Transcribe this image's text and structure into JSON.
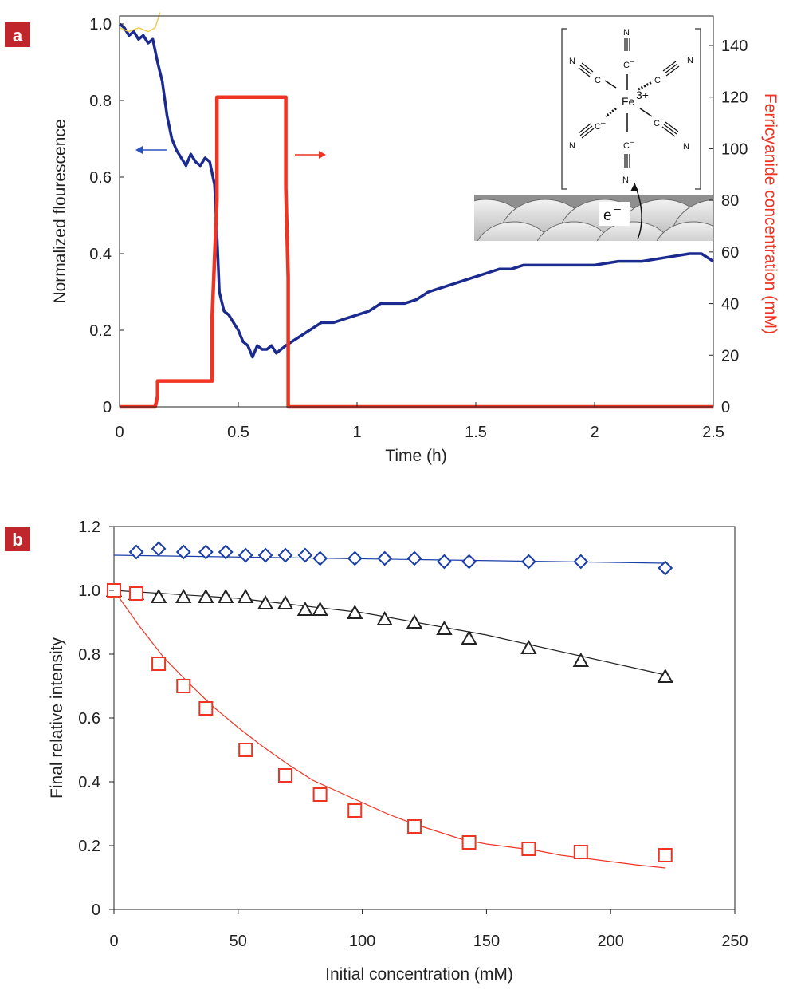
{
  "chart_data": [
    {
      "panel_label": "a",
      "type": "line",
      "xlabel": "Time (h)",
      "ylabel": "Normalized flourescence",
      "y2label": "Ferricyanide concentration (mM)",
      "xlim": [
        0,
        2.5
      ],
      "ylim": [
        0,
        1.0
      ],
      "y2lim": [
        0,
        150
      ],
      "xticks": [
        "0",
        "0.5",
        "1",
        "1.5",
        "2",
        "2.5"
      ],
      "yticks": [
        "0",
        "0.2",
        "0.4",
        "0.6",
        "0.8",
        "1.0"
      ],
      "y2ticks": [
        "0",
        "20",
        "40",
        "60",
        "80",
        "100",
        "120",
        "140"
      ],
      "grid": false,
      "series": [
        {
          "axis": "left",
          "color": "#1a2a8f",
          "x": [
            0,
            0.02,
            0.04,
            0.06,
            0.08,
            0.1,
            0.12,
            0.14,
            0.16,
            0.18,
            0.2,
            0.22,
            0.24,
            0.26,
            0.28,
            0.3,
            0.32,
            0.34,
            0.36,
            0.38,
            0.4,
            0.41,
            0.42,
            0.44,
            0.46,
            0.48,
            0.5,
            0.52,
            0.54,
            0.56,
            0.58,
            0.6,
            0.62,
            0.64,
            0.66,
            0.68,
            0.7,
            0.75,
            0.8,
            0.85,
            0.9,
            0.95,
            1.0,
            1.05,
            1.1,
            1.15,
            1.2,
            1.25,
            1.3,
            1.35,
            1.4,
            1.45,
            1.5,
            1.55,
            1.6,
            1.65,
            1.7,
            1.8,
            1.9,
            2.0,
            2.1,
            2.2,
            2.3,
            2.4,
            2.45,
            2.5
          ],
          "y": [
            1.0,
            0.99,
            0.97,
            0.98,
            0.96,
            0.97,
            0.95,
            0.96,
            0.9,
            0.85,
            0.76,
            0.7,
            0.67,
            0.65,
            0.63,
            0.66,
            0.64,
            0.63,
            0.65,
            0.64,
            0.58,
            0.45,
            0.3,
            0.25,
            0.24,
            0.22,
            0.2,
            0.17,
            0.16,
            0.13,
            0.16,
            0.15,
            0.15,
            0.16,
            0.14,
            0.15,
            0.16,
            0.18,
            0.2,
            0.22,
            0.22,
            0.23,
            0.24,
            0.25,
            0.27,
            0.27,
            0.27,
            0.28,
            0.3,
            0.31,
            0.32,
            0.33,
            0.34,
            0.35,
            0.36,
            0.36,
            0.37,
            0.37,
            0.37,
            0.37,
            0.38,
            0.38,
            0.39,
            0.4,
            0.4,
            0.38
          ]
        },
        {
          "axis": "left",
          "color": "#f2c94c",
          "x": [
            0,
            0.04,
            0.08,
            0.12,
            0.15,
            0.17
          ],
          "y": [
            0.99,
            0.98,
            0.99,
            0.98,
            0.99,
            1.03
          ]
        },
        {
          "axis": "right",
          "color": "#ee3524",
          "x": [
            0,
            0.15,
            0.16,
            0.16,
            0.39,
            0.39,
            0.41,
            0.41,
            0.7,
            0.7,
            0.71,
            0.71,
            2.5
          ],
          "y": [
            0,
            0,
            4,
            10,
            10,
            35,
            80,
            120,
            120,
            85,
            50,
            0,
            0
          ]
        }
      ],
      "annotations": {
        "left_arrow_color": "#2a52be",
        "right_arrow_color": "#ee3524",
        "complex_labels": {
          "metal": "Fe",
          "charge": "3+",
          "cyano_c": "C",
          "cyano_c_charge": "–",
          "cyano_n": "N",
          "electron": "e",
          "electron_charge": "–"
        }
      }
    },
    {
      "panel_label": "b",
      "type": "scatter",
      "xlabel": "Initial concentration (mM)",
      "ylabel": "Final relative intensity",
      "xlim": [
        0,
        250
      ],
      "ylim": [
        0,
        1.2
      ],
      "xticks": [
        "0",
        "50",
        "100",
        "150",
        "200",
        "250"
      ],
      "yticks": [
        "0",
        "0.2",
        "0.4",
        "0.6",
        "0.8",
        "1.0",
        "1.2"
      ],
      "grid": false,
      "series": [
        {
          "marker": "diamond",
          "color": "#1a3da8",
          "x": [
            0,
            9,
            18,
            28,
            37,
            45,
            53,
            61,
            69,
            77,
            83,
            97,
            109,
            121,
            133,
            143,
            167,
            188,
            222
          ],
          "y": [
            1.0,
            1.12,
            1.13,
            1.12,
            1.12,
            1.12,
            1.11,
            1.11,
            1.11,
            1.11,
            1.1,
            1.1,
            1.1,
            1.1,
            1.09,
            1.09,
            1.09,
            1.09,
            1.07
          ],
          "fit": {
            "x": [
              0,
              222
            ],
            "y": [
              1.11,
              1.085
            ]
          }
        },
        {
          "marker": "triangle",
          "color": "#222222",
          "x": [
            0,
            9,
            18,
            28,
            37,
            45,
            53,
            61,
            69,
            77,
            83,
            97,
            109,
            121,
            133,
            143,
            167,
            188,
            222
          ],
          "y": [
            1.0,
            0.99,
            0.98,
            0.98,
            0.98,
            0.98,
            0.98,
            0.96,
            0.96,
            0.94,
            0.94,
            0.93,
            0.91,
            0.9,
            0.88,
            0.85,
            0.82,
            0.78,
            0.73
          ],
          "fit": {
            "x": [
              0,
              50,
              100,
              150,
              222
            ],
            "y": [
              1.0,
              0.975,
              0.93,
              0.86,
              0.735
            ]
          }
        },
        {
          "marker": "square",
          "color": "#ee3524",
          "x": [
            0,
            9,
            18,
            28,
            37,
            53,
            69,
            83,
            97,
            121,
            143,
            167,
            188,
            222
          ],
          "y": [
            1.0,
            0.99,
            0.77,
            0.7,
            0.63,
            0.5,
            0.42,
            0.36,
            0.31,
            0.26,
            0.21,
            0.19,
            0.18,
            0.17
          ],
          "fit": {
            "x": [
              0,
              10,
              20,
              30,
              40,
              50,
              60,
              70,
              80,
              90,
              100,
              110,
              120,
              130,
              140,
              150,
              160,
              170,
              180,
              190,
              200,
              210,
              222
            ],
            "y": [
              1.0,
              0.89,
              0.79,
              0.71,
              0.635,
              0.57,
              0.51,
              0.455,
              0.405,
              0.37,
              0.335,
              0.3,
              0.27,
              0.245,
              0.22,
              0.205,
              0.195,
              0.185,
              0.17,
              0.16,
              0.15,
              0.14,
              0.13
            ]
          }
        }
      ]
    }
  ]
}
